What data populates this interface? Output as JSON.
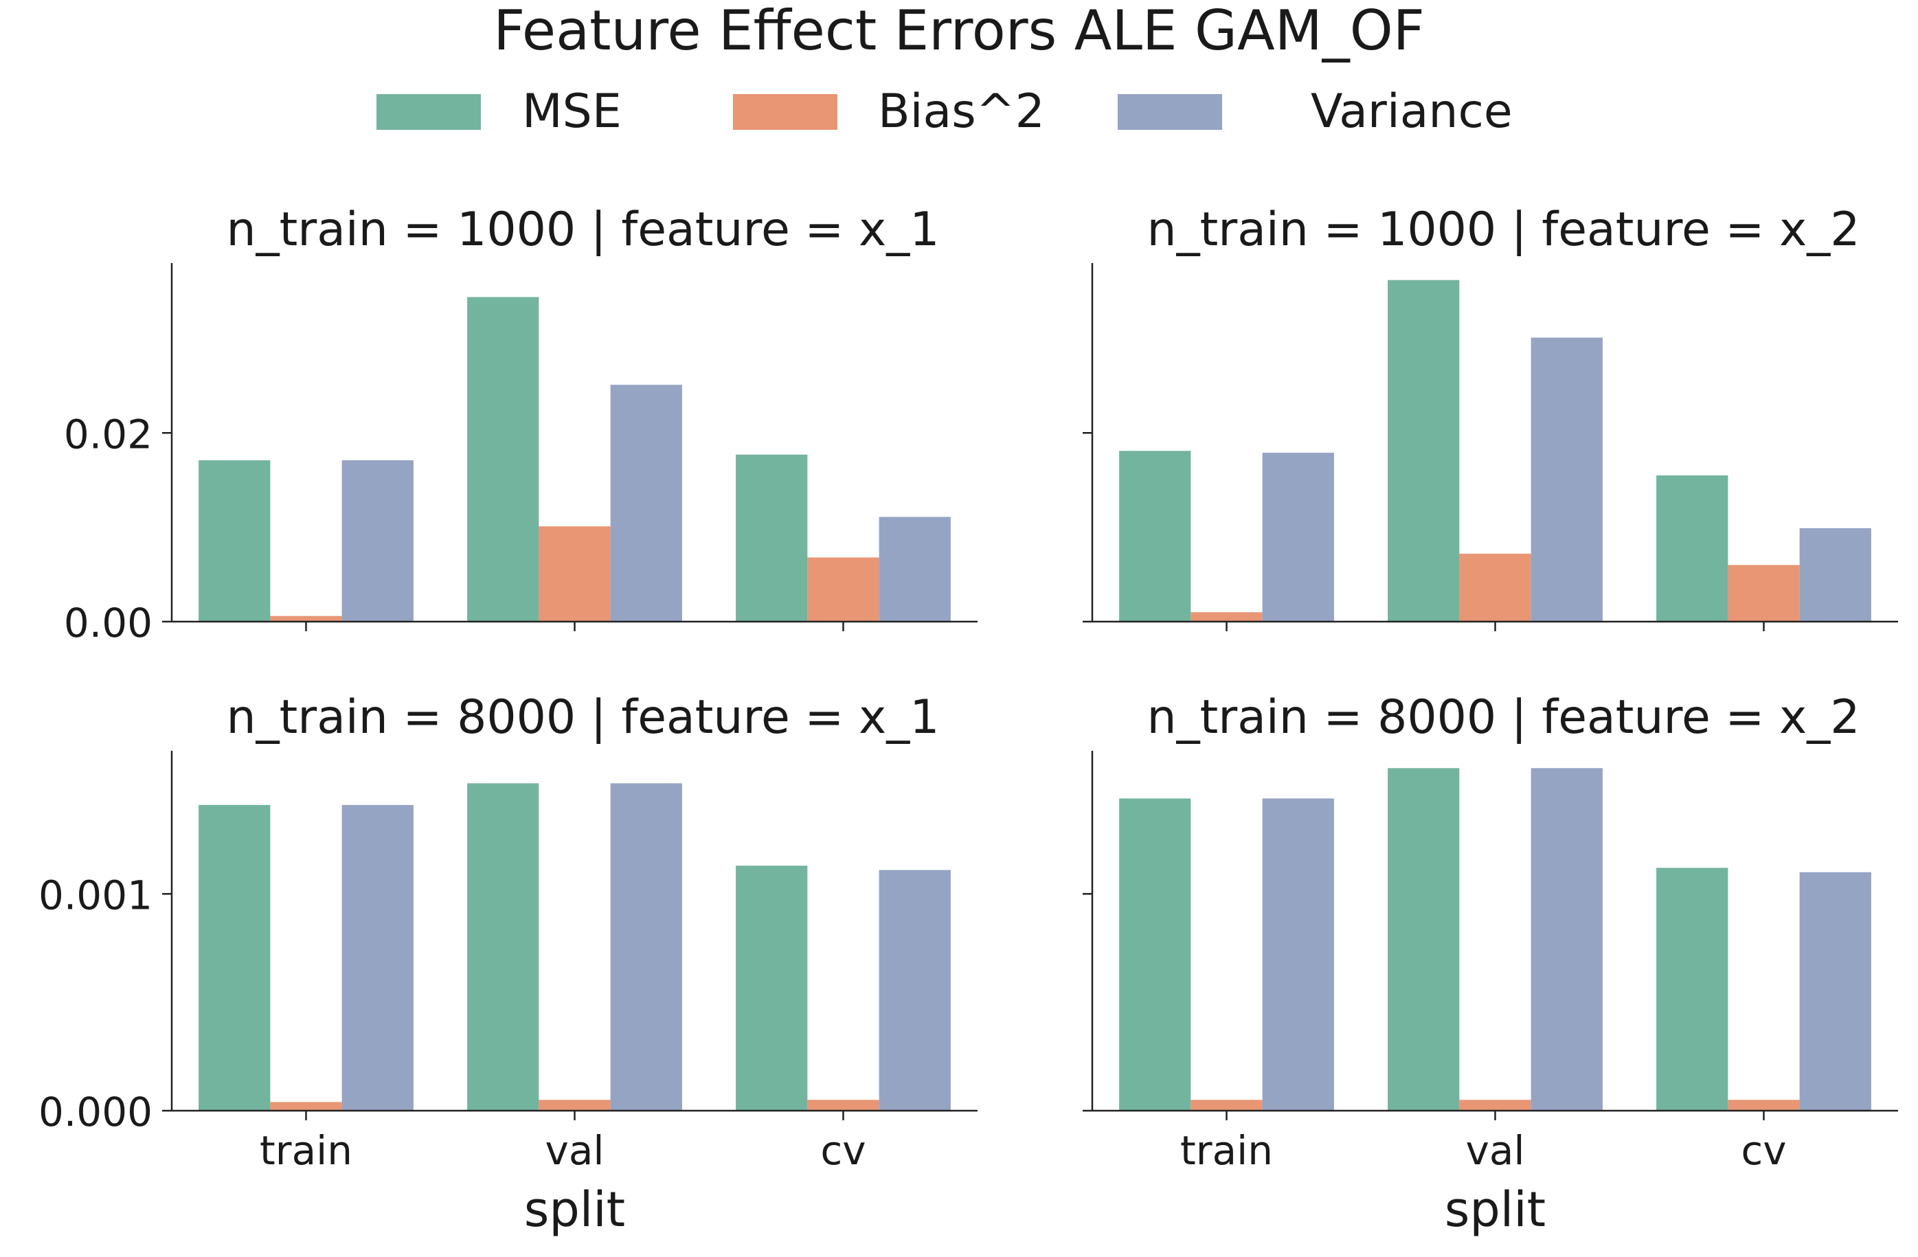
{
  "chart_data": {
    "type": "bar",
    "title": "Feature Effect Errors ALE GAM_OF",
    "xlabel": "split",
    "categories": [
      "train",
      "val",
      "cv"
    ],
    "legend": {
      "placement": "top-center",
      "entries": [
        {
          "name": "MSE",
          "color": "#73b49f"
        },
        {
          "name": "Bias^2",
          "color": "#e89674"
        },
        {
          "name": "Variance",
          "color": "#95a4c3"
        }
      ]
    },
    "sharey_rows": true,
    "panels": [
      {
        "title": "n_train = 1000 | feature = x_1",
        "ylim": [
          0,
          0.038
        ],
        "yticks": [
          0.0,
          0.02
        ],
        "ytick_labels": [
          "0.00",
          "0.02"
        ],
        "series": [
          {
            "name": "MSE",
            "values": [
              0.0171,
              0.0344,
              0.0177
            ]
          },
          {
            "name": "Bias^2",
            "values": [
              0.0006,
              0.0101,
              0.0068
            ]
          },
          {
            "name": "Variance",
            "values": [
              0.0171,
              0.0251,
              0.0111
            ]
          }
        ]
      },
      {
        "title": "n_train = 1000 | feature = x_2",
        "ylim": [
          0,
          0.038
        ],
        "yticks": [
          0.0,
          0.02
        ],
        "ytick_labels": [
          "",
          ""
        ],
        "series": [
          {
            "name": "MSE",
            "values": [
              0.0181,
              0.0362,
              0.0155
            ]
          },
          {
            "name": "Bias^2",
            "values": [
              0.001,
              0.0072,
              0.006
            ]
          },
          {
            "name": "Variance",
            "values": [
              0.0179,
              0.0301,
              0.0099
            ]
          }
        ]
      },
      {
        "title": "n_train = 8000 | feature = x_1",
        "ylim": [
          0,
          0.00166
        ],
        "yticks": [
          0.0,
          0.001
        ],
        "ytick_labels": [
          "0.000",
          "0.001"
        ],
        "series": [
          {
            "name": "MSE",
            "values": [
              0.00141,
              0.00151,
              0.00113
            ]
          },
          {
            "name": "Bias^2",
            "values": [
              4e-05,
              5e-05,
              5e-05
            ]
          },
          {
            "name": "Variance",
            "values": [
              0.00141,
              0.00151,
              0.00111
            ]
          }
        ]
      },
      {
        "title": "n_train = 8000 | feature = x_2",
        "ylim": [
          0,
          0.00166
        ],
        "yticks": [
          0.0,
          0.001
        ],
        "ytick_labels": [
          "",
          ""
        ],
        "series": [
          {
            "name": "MSE",
            "values": [
              0.00144,
              0.00158,
              0.00112
            ]
          },
          {
            "name": "Bias^2",
            "values": [
              5e-05,
              5e-05,
              5e-05
            ]
          },
          {
            "name": "Variance",
            "values": [
              0.00144,
              0.00158,
              0.0011
            ]
          }
        ]
      }
    ]
  }
}
